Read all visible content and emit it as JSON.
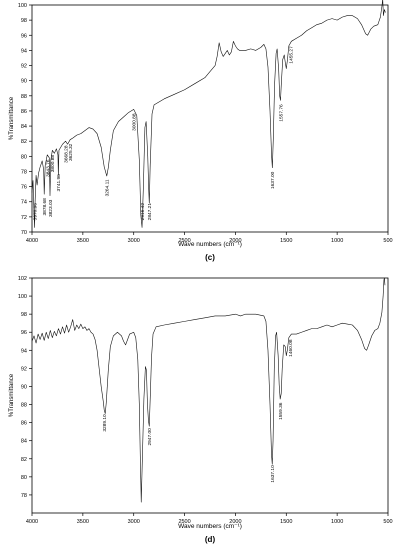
{
  "chart_data": [
    {
      "type": "line",
      "panel_label": "(c)",
      "xlabel": "Wave numbers (cm⁻¹)",
      "ylabel": "%Transmittance",
      "x_reversed": true,
      "xlim": [
        4000,
        500
      ],
      "ylim": [
        70,
        100
      ],
      "x_ticks": [
        4000,
        3500,
        3000,
        2500,
        2000,
        1500,
        1000,
        500
      ],
      "y_ticks": [
        70,
        72,
        74,
        76,
        78,
        80,
        82,
        84,
        86,
        88,
        90,
        92,
        94,
        96,
        98,
        100
      ],
      "series": [
        {
          "points": [
            [
              4000,
              75.2
            ],
            [
              3990,
              76.8
            ],
            [
              3980,
              72.5
            ],
            [
              3975,
              70.6
            ],
            [
              3970,
              73.8
            ],
            [
              3960,
              77.5
            ],
            [
              3950,
              76.2
            ],
            [
              3935,
              77.8
            ],
            [
              3920,
              78.6
            ],
            [
              3900,
              79.4
            ],
            [
              3885,
              78.2
            ],
            [
              3880,
              75.0
            ],
            [
              3870,
              78.8
            ],
            [
              3850,
              80.2
            ],
            [
              3830,
              79.8
            ],
            [
              3823,
              74.8
            ],
            [
              3815,
              79.5
            ],
            [
              3800,
              80.8
            ],
            [
              3780,
              80.4
            ],
            [
              3760,
              81.0
            ],
            [
              3745,
              80.2
            ],
            [
              3741,
              77.5
            ],
            [
              3735,
              80.8
            ],
            [
              3700,
              81.6
            ],
            [
              3670,
              82.0
            ],
            [
              3650,
              81.6
            ],
            [
              3625,
              82.2
            ],
            [
              3600,
              82.4
            ],
            [
              3560,
              82.8
            ],
            [
              3520,
              83.0
            ],
            [
              3480,
              83.4
            ],
            [
              3440,
              83.8
            ],
            [
              3400,
              83.6
            ],
            [
              3360,
              83.0
            ],
            [
              3320,
              81.2
            ],
            [
              3290,
              78.6
            ],
            [
              3265,
              77.4
            ],
            [
              3250,
              78.5
            ],
            [
              3230,
              80.8
            ],
            [
              3200,
              83.4
            ],
            [
              3150,
              84.6
            ],
            [
              3100,
              85.2
            ],
            [
              3050,
              85.8
            ],
            [
              3000,
              86.2
            ],
            [
              2970,
              85.4
            ],
            [
              2945,
              79.5
            ],
            [
              2930,
              72.2
            ],
            [
              2918,
              70.6
            ],
            [
              2905,
              76.0
            ],
            [
              2890,
              83.8
            ],
            [
              2878,
              84.6
            ],
            [
              2862,
              80.0
            ],
            [
              2852,
              75.4
            ],
            [
              2847,
              73.8
            ],
            [
              2838,
              78.8
            ],
            [
              2820,
              85.6
            ],
            [
              2800,
              86.8
            ],
            [
              2700,
              87.6
            ],
            [
              2600,
              88.2
            ],
            [
              2500,
              88.8
            ],
            [
              2400,
              89.6
            ],
            [
              2300,
              90.4
            ],
            [
              2250,
              91.2
            ],
            [
              2200,
              92.0
            ],
            [
              2180,
              93.2
            ],
            [
              2160,
              95.0
            ],
            [
              2140,
              93.8
            ],
            [
              2120,
              93.2
            ],
            [
              2100,
              93.6
            ],
            [
              2080,
              94.0
            ],
            [
              2060,
              93.4
            ],
            [
              2040,
              93.8
            ],
            [
              2020,
              95.2
            ],
            [
              2000,
              94.6
            ],
            [
              1980,
              94.2
            ],
            [
              1960,
              94.0
            ],
            [
              1900,
              94.0
            ],
            [
              1850,
              94.2
            ],
            [
              1800,
              94.0
            ],
            [
              1750,
              94.4
            ],
            [
              1720,
              94.8
            ],
            [
              1700,
              94.2
            ],
            [
              1680,
              91.8
            ],
            [
              1660,
              86.0
            ],
            [
              1645,
              80.2
            ],
            [
              1637,
              78.5
            ],
            [
              1628,
              82.2
            ],
            [
              1615,
              89.5
            ],
            [
              1600,
              93.6
            ],
            [
              1590,
              94.2
            ],
            [
              1575,
              91.5
            ],
            [
              1565,
              88.0
            ],
            [
              1557,
              87.4
            ],
            [
              1548,
              89.8
            ],
            [
              1535,
              92.8
            ],
            [
              1520,
              93.4
            ],
            [
              1510,
              92.4
            ],
            [
              1500,
              91.6
            ],
            [
              1490,
              92.6
            ],
            [
              1475,
              94.6
            ],
            [
              1450,
              95.2
            ],
            [
              1400,
              95.6
            ],
            [
              1350,
              96.0
            ],
            [
              1300,
              96.6
            ],
            [
              1250,
              97.0
            ],
            [
              1200,
              97.4
            ],
            [
              1150,
              97.6
            ],
            [
              1100,
              98.0
            ],
            [
              1050,
              98.2
            ],
            [
              1000,
              98.0
            ],
            [
              950,
              98.4
            ],
            [
              900,
              98.6
            ],
            [
              850,
              98.6
            ],
            [
              800,
              98.2
            ],
            [
              760,
              97.4
            ],
            [
              720,
              96.2
            ],
            [
              700,
              96.0
            ],
            [
              670,
              96.8
            ],
            [
              640,
              97.2
            ],
            [
              600,
              97.4
            ],
            [
              575,
              98.4
            ],
            [
              560,
              99.8
            ],
            [
              552,
              100.8
            ],
            [
              545,
              98.6
            ],
            [
              535,
              99.4
            ],
            [
              525,
              99.0
            ]
          ]
        }
      ],
      "annotations": [
        {
          "label": "3970.96",
          "x": 3975
        },
        {
          "label": "3878.68",
          "x": 3880
        },
        {
          "label": "3843.76",
          "x": 3845
        },
        {
          "label": "3823.03",
          "x": 3823
        },
        {
          "label": "3800.88",
          "x": 3801
        },
        {
          "label": "3741.96",
          "x": 3742
        },
        {
          "label": "3668.28",
          "x": 3668
        },
        {
          "label": "3625.32",
          "x": 3625
        },
        {
          "label": "3264.11",
          "x": 3264
        },
        {
          "label": "3000.88",
          "x": 3001
        },
        {
          "label": "2916.42",
          "x": 2916
        },
        {
          "label": "2847.21",
          "x": 2847
        },
        {
          "label": "1637.00",
          "x": 1637
        },
        {
          "label": "1557.76",
          "x": 1557
        },
        {
          "label": "1455.27",
          "x": 1455
        }
      ]
    },
    {
      "type": "line",
      "panel_label": "(d)",
      "xlabel": "Wave numbers (cm⁻¹)",
      "ylabel": "%Transmittance",
      "x_reversed": true,
      "xlim": [
        4000,
        500
      ],
      "ylim": [
        76,
        102
      ],
      "x_ticks": [
        4000,
        3500,
        3000,
        2500,
        2000,
        1500,
        1000,
        500
      ],
      "y_ticks": [
        78,
        80,
        82,
        84,
        86,
        88,
        90,
        92,
        94,
        96,
        98,
        100,
        102
      ],
      "series": [
        {
          "points": [
            [
              4000,
              95.0
            ],
            [
              3980,
              95.6
            ],
            [
              3960,
              94.8
            ],
            [
              3940,
              95.8
            ],
            [
              3920,
              95.2
            ],
            [
              3900,
              95.9
            ],
            [
              3880,
              95.1
            ],
            [
              3860,
              96.0
            ],
            [
              3840,
              95.3
            ],
            [
              3820,
              96.2
            ],
            [
              3800,
              95.4
            ],
            [
              3780,
              96.1
            ],
            [
              3760,
              95.6
            ],
            [
              3740,
              96.4
            ],
            [
              3720,
              95.8
            ],
            [
              3700,
              96.6
            ],
            [
              3680,
              95.9
            ],
            [
              3660,
              96.8
            ],
            [
              3640,
              96.0
            ],
            [
              3620,
              96.6
            ],
            [
              3600,
              97.4
            ],
            [
              3580,
              96.2
            ],
            [
              3560,
              96.8
            ],
            [
              3540,
              96.4
            ],
            [
              3520,
              96.9
            ],
            [
              3500,
              96.4
            ],
            [
              3480,
              96.6
            ],
            [
              3460,
              96.2
            ],
            [
              3440,
              96.4
            ],
            [
              3420,
              96.0
            ],
            [
              3400,
              95.8
            ],
            [
              3380,
              95.2
            ],
            [
              3360,
              94.0
            ],
            [
              3340,
              92.0
            ],
            [
              3320,
              90.0
            ],
            [
              3300,
              88.4
            ],
            [
              3290,
              87.4
            ],
            [
              3280,
              87.0
            ],
            [
              3270,
              88.2
            ],
            [
              3250,
              91.8
            ],
            [
              3230,
              94.4
            ],
            [
              3200,
              95.6
            ],
            [
              3160,
              96.0
            ],
            [
              3120,
              95.6
            ],
            [
              3100,
              95.0
            ],
            [
              3080,
              94.6
            ],
            [
              3060,
              95.2
            ],
            [
              3040,
              95.8
            ],
            [
              3000,
              96.0
            ],
            [
              2980,
              95.4
            ],
            [
              2960,
              93.0
            ],
            [
              2945,
              88.0
            ],
            [
              2935,
              82.0
            ],
            [
              2926,
              77.2
            ],
            [
              2915,
              82.0
            ],
            [
              2900,
              88.6
            ],
            [
              2885,
              92.2
            ],
            [
              2875,
              91.8
            ],
            [
              2865,
              88.0
            ],
            [
              2855,
              86.2
            ],
            [
              2847,
              85.6
            ],
            [
              2838,
              88.6
            ],
            [
              2825,
              93.2
            ],
            [
              2810,
              95.8
            ],
            [
              2780,
              96.6
            ],
            [
              2700,
              96.8
            ],
            [
              2600,
              97.0
            ],
            [
              2500,
              97.2
            ],
            [
              2400,
              97.4
            ],
            [
              2300,
              97.6
            ],
            [
              2200,
              97.8
            ],
            [
              2100,
              97.8
            ],
            [
              2000,
              98.0
            ],
            [
              1950,
              97.8
            ],
            [
              1900,
              98.0
            ],
            [
              1850,
              98.0
            ],
            [
              1800,
              98.0
            ],
            [
              1760,
              97.9
            ],
            [
              1720,
              97.8
            ],
            [
              1700,
              97.2
            ],
            [
              1680,
              94.0
            ],
            [
              1660,
              88.0
            ],
            [
              1645,
              82.4
            ],
            [
              1638,
              81.4
            ],
            [
              1630,
              84.0
            ],
            [
              1618,
              92.0
            ],
            [
              1605,
              95.6
            ],
            [
              1595,
              96.0
            ],
            [
              1580,
              93.4
            ],
            [
              1570,
              90.2
            ],
            [
              1560,
              88.6
            ],
            [
              1550,
              89.2
            ],
            [
              1540,
              92.0
            ],
            [
              1525,
              94.6
            ],
            [
              1510,
              94.4
            ],
            [
              1500,
              93.4
            ],
            [
              1490,
              94.0
            ],
            [
              1475,
              95.4
            ],
            [
              1450,
              95.8
            ],
            [
              1400,
              95.8
            ],
            [
              1350,
              96.0
            ],
            [
              1300,
              96.2
            ],
            [
              1250,
              96.4
            ],
            [
              1200,
              96.4
            ],
            [
              1150,
              96.6
            ],
            [
              1100,
              96.8
            ],
            [
              1050,
              96.6
            ],
            [
              1000,
              96.8
            ],
            [
              950,
              97.0
            ],
            [
              900,
              96.9
            ],
            [
              850,
              96.8
            ],
            [
              800,
              96.2
            ],
            [
              760,
              95.2
            ],
            [
              730,
              94.2
            ],
            [
              710,
              94.0
            ],
            [
              690,
              94.6
            ],
            [
              660,
              95.6
            ],
            [
              630,
              96.2
            ],
            [
              600,
              96.4
            ],
            [
              580,
              97.0
            ],
            [
              560,
              98.2
            ],
            [
              548,
              100.0
            ],
            [
              540,
              101.8
            ],
            [
              535,
              102.0
            ],
            [
              530,
              101.2
            ]
          ]
        }
      ],
      "annotations": [
        {
          "label": "3289.10",
          "x": 3289
        },
        {
          "label": "2947.00",
          "x": 2850
        },
        {
          "label": "1637.10",
          "x": 1637
        },
        {
          "label": "1559.36",
          "x": 1559
        },
        {
          "label": "1460.08",
          "x": 1460
        }
      ]
    }
  ]
}
